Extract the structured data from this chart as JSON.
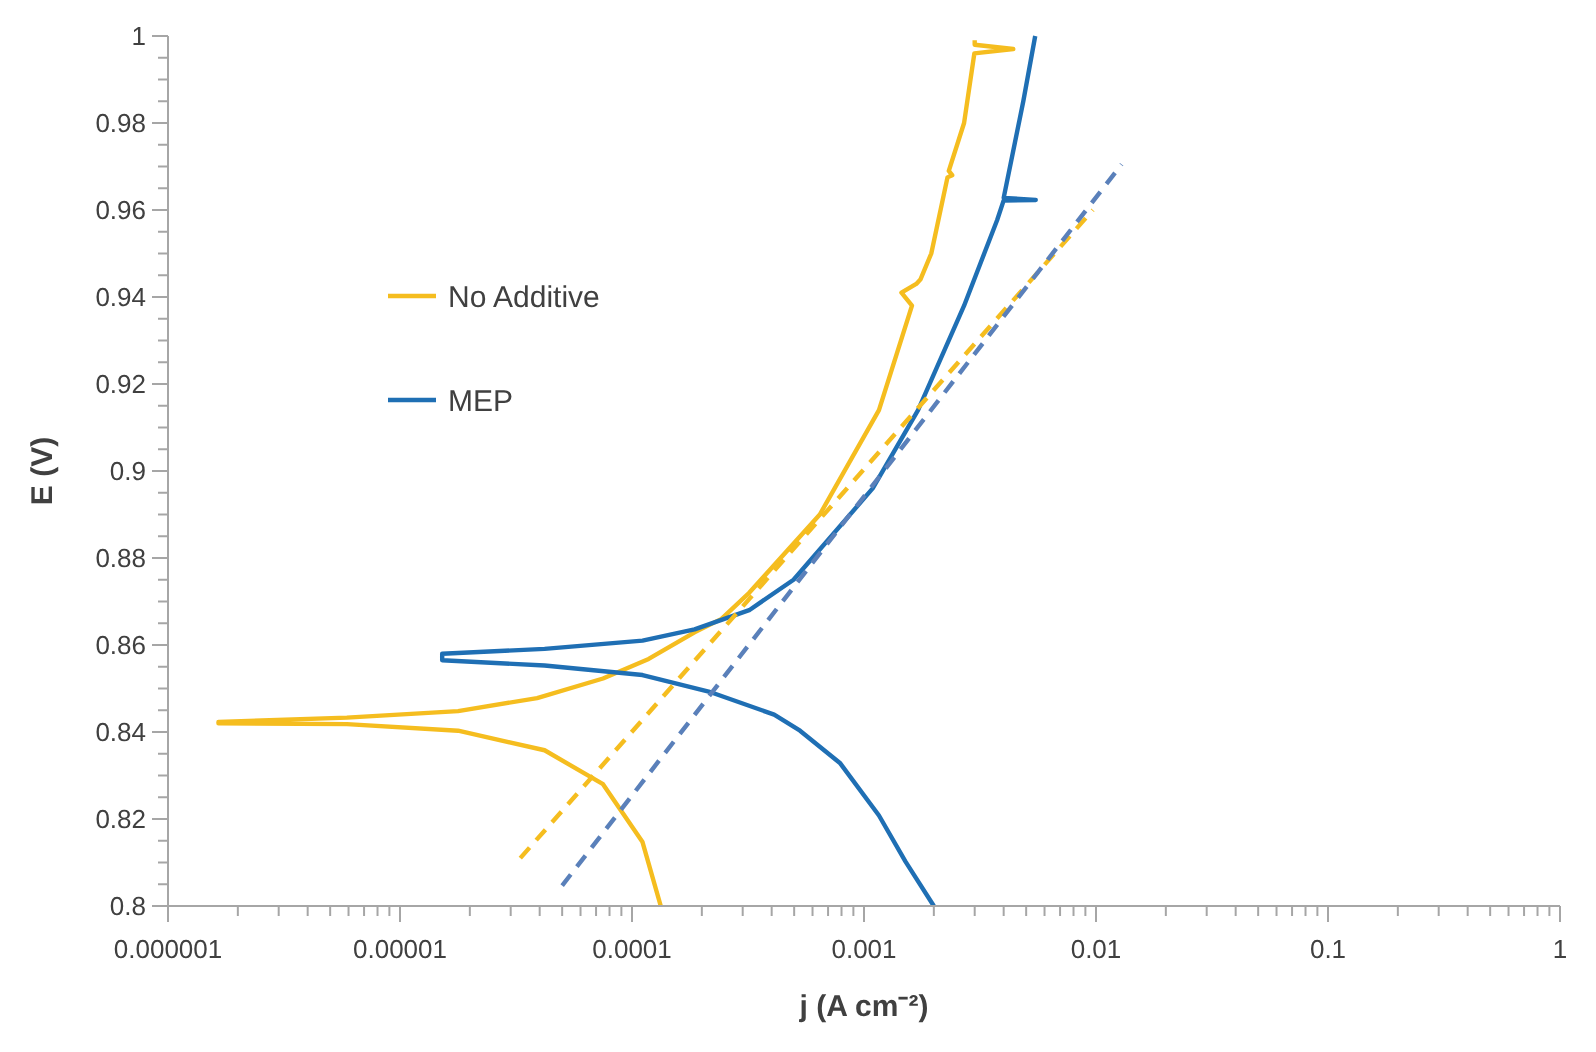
{
  "chart_data": {
    "type": "line",
    "xlabel": "j (A cm⁻²)",
    "ylabel": "E (V)",
    "log": "x",
    "xlim": [
      1e-06,
      1
    ],
    "xticks": [
      {
        "value": 1e-06,
        "label": "0.000001"
      },
      {
        "value": 1e-05,
        "label": "0.00001"
      },
      {
        "value": 0.0001,
        "label": "0.0001"
      },
      {
        "value": 0.001,
        "label": "0.001"
      },
      {
        "value": 0.01,
        "label": "0.01"
      },
      {
        "value": 0.1,
        "label": "0.1"
      },
      {
        "value": 1,
        "label": "1"
      }
    ],
    "ylim": [
      0.8,
      1
    ],
    "yticks": [
      0.8,
      0.82,
      0.84,
      0.86,
      0.88,
      0.9,
      0.92,
      0.94,
      0.96,
      0.98,
      1
    ],
    "legend": "left",
    "grid": false,
    "marker": "none",
    "series": [
      {
        "name": "No Additive",
        "color": "#f5bd1f",
        "line_style": "solid",
        "x": [
          0.000133,
          0.000111,
          7.5e-05,
          4.2e-05,
          1.78e-05,
          5.9e-06,
          1.65e-06,
          1.65e-06,
          5.9e-06,
          1.78e-05,
          3.9e-05,
          7.5e-05,
          0.000118,
          0.000186,
          0.000243,
          0.00032,
          0.000645,
          0.00116,
          0.00161,
          0.00145,
          0.00168,
          0.00175,
          0.00195,
          0.00229,
          0.0024,
          0.00232,
          0.0027,
          0.00299,
          0.0044,
          0.003,
          0.003
        ],
        "values": [
          0.8,
          0.8147,
          0.828,
          0.8358,
          0.8403,
          0.8418,
          0.842,
          0.8423,
          0.8433,
          0.8448,
          0.8478,
          0.8523,
          0.8568,
          0.8629,
          0.866,
          0.872,
          0.89,
          0.914,
          0.938,
          0.941,
          0.943,
          0.944,
          0.95,
          0.9675,
          0.968,
          0.969,
          0.98,
          0.996,
          0.997,
          0.998,
          0.999
        ]
      },
      {
        "name": "MEP",
        "color": "#1f6fb4",
        "line_style": "solid",
        "x": [
          0.002,
          0.00151,
          0.00116,
          0.00079,
          0.00053,
          0.00041,
          0.000214,
          0.000111,
          4.2e-05,
          1.52e-05,
          1.52e-05,
          4.2e-05,
          0.000111,
          0.000186,
          0.00032,
          0.000497,
          0.00109,
          0.00171,
          0.0027,
          0.00375,
          0.004,
          0.0055,
          0.004,
          0.00486,
          0.00547
        ],
        "values": [
          0.8,
          0.8102,
          0.8208,
          0.8328,
          0.8403,
          0.844,
          0.8493,
          0.8531,
          0.8553,
          0.8565,
          0.858,
          0.8591,
          0.861,
          0.8636,
          0.868,
          0.875,
          0.896,
          0.914,
          0.938,
          0.9577,
          0.9622,
          0.9623,
          0.9628,
          0.985,
          1
        ]
      },
      {
        "color": "#f5bd1f",
        "line_style": "dashed",
        "x": [
          3.3e-05,
          0.0097
        ],
        "values": [
          0.811,
          0.96
        ]
      },
      {
        "color": "#5a80ba",
        "line_style": "dashed",
        "x": [
          5e-05,
          0.0129
        ],
        "values": [
          0.8047,
          0.9705
        ]
      }
    ]
  }
}
